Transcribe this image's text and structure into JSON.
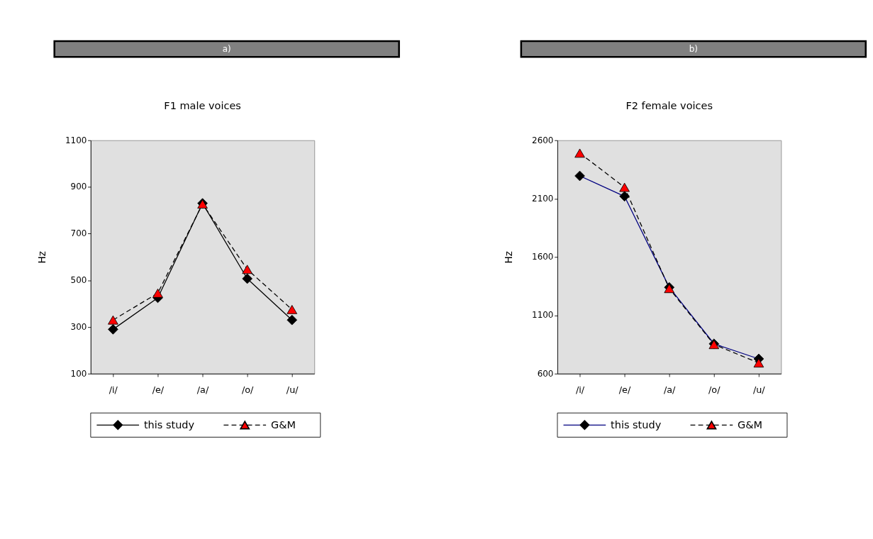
{
  "chart_data": [
    {
      "type": "line",
      "title": "F1 male voices",
      "annotations": [
        "a)"
      ],
      "ylabel": "Hz",
      "categories": [
        "/i/",
        "/e/",
        "/a/",
        "/o/",
        "/u/"
      ],
      "ylim": [
        100,
        1100
      ],
      "yticks": [
        100,
        300,
        500,
        700,
        900,
        1100
      ],
      "grid": false,
      "legend": "bottom",
      "series": [
        {
          "name": "this study",
          "color": "#000000",
          "marker": "diamond",
          "line_style": "solid",
          "values": [
            290,
            425,
            830,
            507,
            330
          ]
        },
        {
          "name": "G&M",
          "color": "#ff0000",
          "marker": "triangle",
          "line_style": "dashed",
          "values": [
            330,
            445,
            827,
            547,
            375
          ]
        }
      ]
    },
    {
      "type": "line",
      "title": "F2 female voices",
      "annotations": [
        "b)"
      ],
      "ylabel": "Hz",
      "categories": [
        "/i/",
        "/e/",
        "/a/",
        "/o/",
        "/u/"
      ],
      "ylim": [
        600,
        2600
      ],
      "yticks": [
        600,
        1100,
        1600,
        2100,
        2600
      ],
      "grid": false,
      "legend": "bottom",
      "series": [
        {
          "name": "this study",
          "color": "#000080",
          "marker": "diamond",
          "line_style": "solid",
          "values": [
            2295,
            2120,
            1340,
            856,
            727
          ]
        },
        {
          "name": "G&M",
          "color": "#ff0000",
          "marker": "triangle",
          "line_style": "dashed",
          "values": [
            2490,
            2197,
            1330,
            850,
            692
          ]
        }
      ]
    }
  ]
}
